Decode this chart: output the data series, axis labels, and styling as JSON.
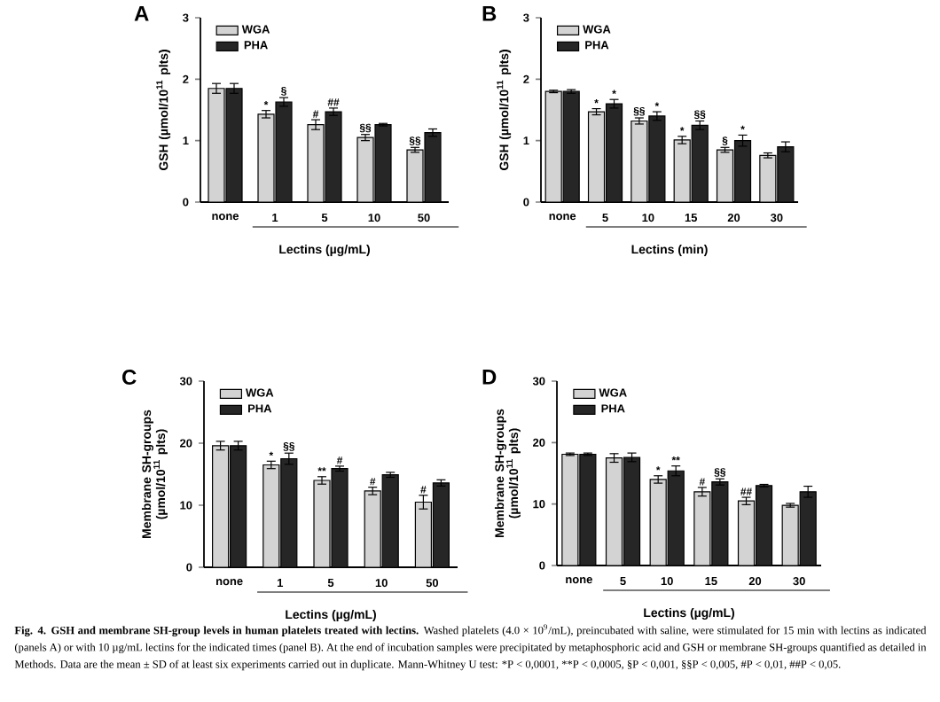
{
  "chart_data": [
    {
      "type": "bar",
      "title": "A",
      "xlabel": "Lectins (µg/mL)",
      "ylabel": "GSH (µmol/10$^{11}$ plts)",
      "categories": [
        "none",
        "1",
        "5",
        "10",
        "50"
      ],
      "ylim": [
        0,
        3
      ],
      "yticks": [
        0,
        1,
        2,
        3
      ],
      "legend": "top left",
      "series": [
        {
          "name": "WGA",
          "color": "#d3d3d3",
          "values": [
            1.85,
            1.43,
            1.26,
            1.05,
            0.85
          ],
          "errors": [
            0.08,
            0.06,
            0.08,
            0.05,
            0.04
          ],
          "value_labels": [
            null,
            "*",
            "#",
            "§§",
            "§§"
          ]
        },
        {
          "name": "PHA",
          "color": "#262626",
          "values": [
            1.85,
            1.63,
            1.47,
            1.26,
            1.13
          ],
          "errors": [
            0.08,
            0.07,
            0.06,
            0.02,
            0.06
          ],
          "value_labels": [
            null,
            "§",
            "##",
            null,
            null
          ]
        }
      ]
    },
    {
      "type": "bar",
      "title": "B",
      "xlabel": "Lectins (min)",
      "ylabel": "GSH (µmol/10$^{11}$ plts)",
      "categories": [
        "none",
        "5",
        "10",
        "15",
        "20",
        "30"
      ],
      "ylim": [
        0,
        3
      ],
      "yticks": [
        0,
        1,
        2,
        3
      ],
      "legend": "top left",
      "series": [
        {
          "name": "WGA",
          "color": "#d3d3d3",
          "values": [
            1.8,
            1.47,
            1.32,
            1.01,
            0.85,
            0.76
          ],
          "errors": [
            0.02,
            0.05,
            0.05,
            0.06,
            0.04,
            0.04
          ],
          "value_labels": [
            null,
            "*",
            "§§",
            "*",
            "§",
            null
          ]
        },
        {
          "name": "PHA",
          "color": "#262626",
          "values": [
            1.8,
            1.6,
            1.4,
            1.25,
            1.0,
            0.9
          ],
          "errors": [
            0.03,
            0.07,
            0.07,
            0.07,
            0.09,
            0.08
          ],
          "value_labels": [
            null,
            "*",
            "*",
            "§§",
            "*",
            null
          ]
        }
      ]
    },
    {
      "type": "bar",
      "title": "C",
      "xlabel": "Lectins (µg/mL)",
      "ylabel": "Membrane SH-groups (µmol/10$^{11}$ plts)",
      "categories": [
        "none",
        "1",
        "5",
        "10",
        "50"
      ],
      "ylim": [
        0,
        30
      ],
      "yticks": [
        0,
        10,
        20,
        30
      ],
      "legend": "top left",
      "series": [
        {
          "name": "WGA",
          "color": "#d3d3d3",
          "values": [
            19.6,
            16.5,
            14.0,
            12.3,
            10.5
          ],
          "errors": [
            0.7,
            0.6,
            0.6,
            0.6,
            1.1
          ],
          "value_labels": [
            null,
            "*",
            "**",
            "#",
            "#"
          ]
        },
        {
          "name": "PHA",
          "color": "#262626",
          "values": [
            19.6,
            17.5,
            15.9,
            14.9,
            13.6
          ],
          "errors": [
            0.7,
            0.9,
            0.4,
            0.4,
            0.5
          ],
          "value_labels": [
            null,
            "§§",
            "#",
            null,
            null
          ]
        }
      ]
    },
    {
      "type": "bar",
      "title": "D",
      "xlabel": "Lectins (µg/mL)",
      "ylabel": "Membrane SH-groups (µmol/10$^{11}$ plts)",
      "categories": [
        "none",
        "5",
        "10",
        "15",
        "20",
        "30"
      ],
      "ylim": [
        0,
        30
      ],
      "yticks": [
        0,
        10,
        20,
        30
      ],
      "legend": "top left",
      "series": [
        {
          "name": "WGA",
          "color": "#d3d3d3",
          "values": [
            18.1,
            17.5,
            14.0,
            12.0,
            10.5,
            9.8
          ],
          "errors": [
            0.2,
            0.7,
            0.6,
            0.7,
            0.6,
            0.3
          ],
          "value_labels": [
            null,
            null,
            "*",
            "#",
            "##",
            null
          ]
        },
        {
          "name": "PHA",
          "color": "#262626",
          "values": [
            18.1,
            17.6,
            15.4,
            13.6,
            13.0,
            12.0
          ],
          "errors": [
            0.2,
            0.7,
            0.8,
            0.5,
            0.2,
            0.9
          ],
          "value_labels": [
            null,
            null,
            "**",
            "§§",
            null,
            null
          ]
        }
      ],
      "annotations": [
        "Fig. 4. GSH and membrane SH-group levels in human platelets treated with lectins.",
        "Washed platelets (4.0 × 10$^{9}$/mL), preincubated with saline, were stimulated for 15 min with lectins as indicated (panels A) or with 10 µg/mL lectins for the indicated times (panel B). At the end of incubation samples were precipitated by metaphosphoric acid and GSH or membrane SH-groups quantified as detailed in Methods. Data are the mean ± SD of at least six experiments carried out in duplicate. Mann-Whitney U test: *P < 0,0001, **P < 0,0005, §P < 0,001, §§P < 0,005, #P < 0,01, ##P < 0,05."
      ]
    }
  ]
}
